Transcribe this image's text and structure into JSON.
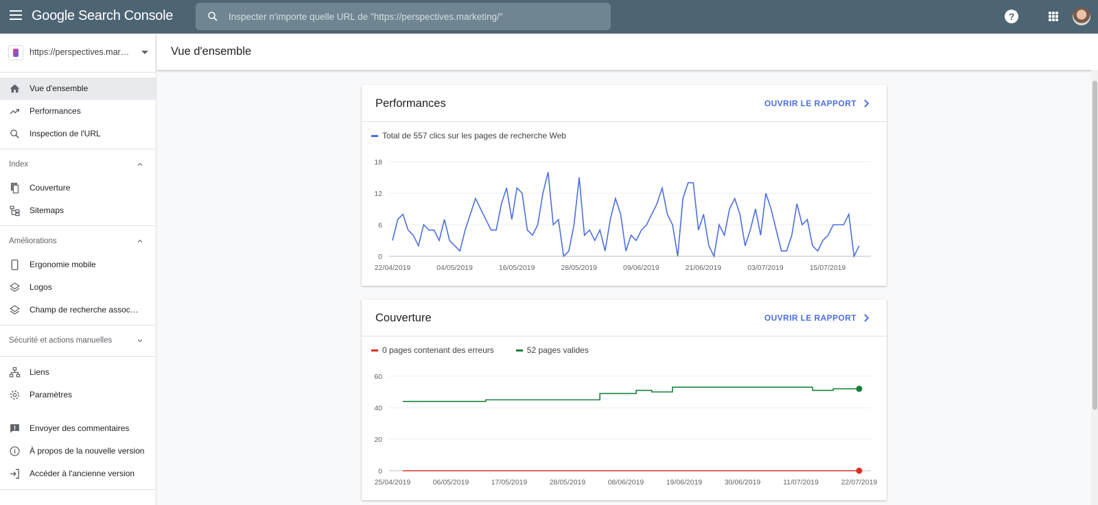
{
  "topbar": {
    "brand": "Google Search Console",
    "search_placeholder": "Inspecter n'importe quelle URL de \"https://perspectives.marketing/\"",
    "help": "?"
  },
  "sidebar": {
    "property": "https://perspectives.marketing/",
    "items_top": [
      {
        "label": "Vue d'ensemble",
        "icon": "home-icon"
      },
      {
        "label": "Performances",
        "icon": "trending-up-icon"
      },
      {
        "label": "Inspection de l'URL",
        "icon": "search-icon"
      }
    ],
    "section_index": "Index",
    "items_index": [
      {
        "label": "Couverture",
        "icon": "file-copy-icon"
      },
      {
        "label": "Sitemaps",
        "icon": "sitemap-icon"
      }
    ],
    "section_ameliorations": "Améliorations",
    "items_ameliorations": [
      {
        "label": "Ergonomie mobile",
        "icon": "smartphone-icon"
      },
      {
        "label": "Logos",
        "icon": "layers-icon"
      },
      {
        "label": "Champ de recherche associé aux liens sitelink",
        "icon": "layers-icon"
      }
    ],
    "section_securite": "Sécurité et actions manuelles",
    "items_links": [
      {
        "label": "Liens",
        "icon": "links-icon"
      },
      {
        "label": "Paramètres",
        "icon": "settings-icon"
      }
    ],
    "items_bottom": [
      {
        "label": "Envoyer des commentaires",
        "icon": "feedback-icon"
      },
      {
        "label": "À propos de la nouvelle version",
        "icon": "info-icon"
      },
      {
        "label": "Accéder à l'ancienne version",
        "icon": "exit-icon"
      }
    ]
  },
  "header": {
    "title": "Vue d'ensemble"
  },
  "cards": {
    "performance": {
      "title": "Performances",
      "open_label": "OUVRIR LE RAPPORT"
    },
    "coverage": {
      "title": "Couverture",
      "open_label": "OUVRIR LE RAPPORT"
    }
  },
  "colors": {
    "clicks": "#4a6ee0",
    "errors": "#d93025",
    "valid": "#188038",
    "topbar": "#4d6473"
  },
  "chart_data": [
    {
      "type": "line",
      "legend": "Total de 557 clics sur les pages de recherche Web",
      "series": [
        {
          "name": "Total de 557 clics sur les pages de recherche Web",
          "values": [
            3,
            7,
            8,
            5,
            4,
            2,
            6,
            5,
            5,
            3,
            7,
            3,
            2,
            1,
            5,
            8,
            11,
            9,
            7,
            5,
            5,
            10,
            13,
            7,
            13,
            12,
            5,
            4,
            6,
            12,
            16,
            6,
            7,
            0,
            1,
            6,
            15,
            4,
            5,
            3,
            5,
            1,
            7,
            11,
            8,
            1,
            4,
            3,
            5,
            6,
            8,
            10,
            13,
            8,
            6,
            0,
            11,
            14,
            14,
            5,
            8,
            2,
            0,
            6,
            4,
            9,
            11,
            8,
            2,
            5,
            9,
            4,
            12,
            9,
            5,
            1,
            1,
            4,
            10,
            6,
            7,
            2,
            1,
            3,
            4,
            6,
            6,
            6,
            8,
            0,
            2
          ]
        }
      ],
      "ylim": [
        0,
        18
      ],
      "yticks": [
        0,
        6,
        12,
        18
      ],
      "xticks": [
        "22/04/2019",
        "04/05/2019",
        "16/05/2019",
        "28/05/2019",
        "09/06/2019",
        "21/06/2019",
        "03/07/2019",
        "15/07/2019"
      ],
      "x_start": "22/04/2019",
      "x_end": "22/07/2019",
      "grid": true
    },
    {
      "type": "line",
      "series": [
        {
          "name": "0 pages contenant des erreurs",
          "values": [
            0,
            0,
            0,
            0,
            0,
            0,
            0,
            0,
            0,
            0,
            0,
            0,
            0,
            0,
            0,
            0,
            0,
            0,
            0,
            0,
            0,
            0,
            0,
            0,
            0,
            0,
            0,
            0,
            0,
            0,
            0,
            0,
            0,
            0,
            0,
            0,
            0,
            0,
            0,
            0,
            0,
            0,
            0,
            0,
            0,
            0,
            0,
            0,
            0,
            0,
            0,
            0,
            0,
            0,
            0,
            0,
            0,
            0,
            0,
            0,
            0,
            0,
            0,
            0,
            0,
            0,
            0,
            0,
            0,
            0,
            0,
            0,
            0,
            0,
            0,
            0,
            0,
            0,
            0,
            0,
            0,
            0,
            0,
            0,
            0,
            0,
            0,
            0,
            0
          ]
        },
        {
          "name": "52 pages valides",
          "values": [
            44,
            44,
            44,
            44,
            44,
            44,
            44,
            44,
            44,
            44,
            44,
            44,
            44,
            44,
            44,
            44,
            45,
            45,
            45,
            45,
            45,
            45,
            45,
            45,
            45,
            45,
            45,
            45,
            45,
            45,
            45,
            45,
            45,
            45,
            45,
            45,
            45,
            45,
            49,
            49,
            49,
            49,
            49,
            49,
            49,
            51,
            51,
            51,
            50,
            50,
            50,
            50,
            53,
            53,
            53,
            53,
            53,
            53,
            53,
            53,
            53,
            53,
            53,
            53,
            53,
            53,
            53,
            53,
            53,
            53,
            53,
            53,
            53,
            53,
            53,
            53,
            53,
            53,
            53,
            51,
            51,
            51,
            51,
            52,
            52,
            52,
            52,
            52,
            52
          ]
        }
      ],
      "ylim": [
        0,
        60
      ],
      "yticks": [
        0,
        20,
        40,
        60
      ],
      "xticks": [
        "25/04/2019",
        "06/05/2019",
        "17/05/2019",
        "28/05/2019",
        "08/06/2019",
        "19/06/2019",
        "30/06/2019",
        "11/07/2019",
        "22/07/2019"
      ],
      "x_start": "25/04/2019",
      "x_end": "22/07/2019",
      "grid": true
    }
  ]
}
